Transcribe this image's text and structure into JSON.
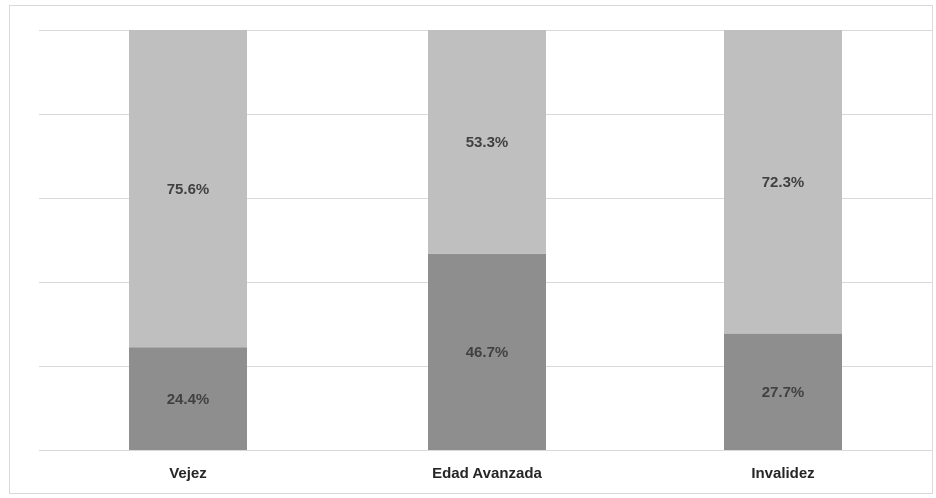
{
  "chart_data": {
    "type": "bar",
    "stacked": true,
    "percent_stacked": true,
    "categories": [
      "Vejez",
      "Edad Avanzada",
      "Invalidez"
    ],
    "series": [
      {
        "values": [
          24.4,
          46.7,
          27.7
        ],
        "labels": [
          "24.4%",
          "46.7%",
          "27.7%"
        ],
        "color": "#8e8e8e"
      },
      {
        "values": [
          75.6,
          53.3,
          72.3
        ],
        "labels": [
          "75.6%",
          "53.3%",
          "72.3%"
        ],
        "color": "#bfbfbf"
      }
    ],
    "ylim": [
      0,
      100
    ],
    "grid": true,
    "legend": "none",
    "gridline_color": "#d9d9d9"
  }
}
